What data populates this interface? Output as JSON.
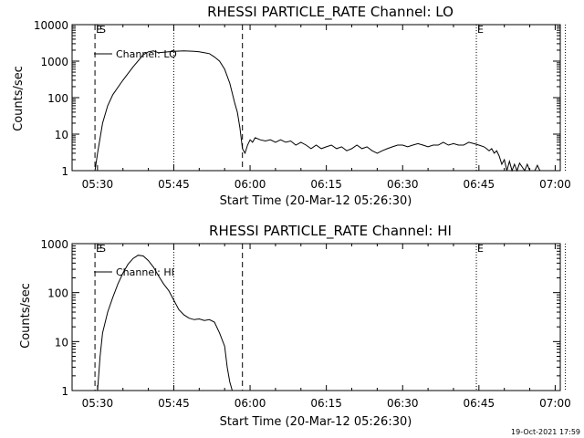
{
  "chart_data": [
    {
      "type": "line",
      "title": "RHESSI PARTICLE_RATE Channel: LO",
      "xlabel": "Start Time (20-Mar-12 05:26:30)",
      "ylabel": "Counts/sec",
      "yscale": "log",
      "ylim": [
        1,
        10000
      ],
      "xlim_minutes": [
        -5,
        91
      ],
      "x_ticks": [
        {
          "t": 0,
          "label": "05:30"
        },
        {
          "t": 15,
          "label": "05:45"
        },
        {
          "t": 30,
          "label": "06:00"
        },
        {
          "t": 45,
          "label": "06:15"
        },
        {
          "t": 60,
          "label": "06:30"
        },
        {
          "t": 75,
          "label": "06:45"
        },
        {
          "t": 90,
          "label": "07:00"
        }
      ],
      "y_ticks": [
        {
          "v": 1,
          "label": "1"
        },
        {
          "v": 10,
          "label": "10"
        },
        {
          "v": 100,
          "label": "100"
        },
        {
          "v": 1000,
          "label": "1000"
        },
        {
          "v": 10000,
          "label": "10000"
        }
      ],
      "legend": "Channel: LO",
      "vlines": [
        {
          "t": -0.5,
          "style": "dashed"
        },
        {
          "t": 15,
          "style": "dotted"
        },
        {
          "t": 28.5,
          "style": "dashed"
        },
        {
          "t": 74.5,
          "style": "dotted"
        },
        {
          "t": 92,
          "style": "dotted"
        }
      ],
      "markers": [
        {
          "t": -0.5,
          "label": "E"
        },
        {
          "t": 0.2,
          "label": "S"
        },
        {
          "t": 74.5,
          "label": "E"
        }
      ],
      "series": [
        {
          "name": "Channel: LO",
          "t": [
            -0.5,
            0,
            1,
            2,
            3,
            5,
            7,
            9,
            10,
            11,
            12,
            13,
            14,
            15,
            17,
            19,
            20,
            21,
            22,
            23,
            24,
            25,
            26,
            27,
            27.5,
            28,
            28.5,
            29,
            29.5,
            30,
            30.5,
            31,
            32,
            33,
            34,
            35,
            36,
            37,
            38,
            39,
            40,
            41,
            42,
            43,
            44,
            45,
            46,
            47,
            48,
            49,
            50,
            51,
            52,
            53,
            54,
            55,
            56,
            57,
            58,
            59,
            60,
            61,
            62,
            63,
            64,
            65,
            66,
            67,
            68,
            69,
            70,
            71,
            72,
            73,
            74,
            75,
            76,
            76.5,
            77,
            77.5,
            78,
            78.5,
            79,
            79.5,
            80,
            80.5,
            81,
            81.5,
            82,
            82.5,
            83,
            84,
            84.5,
            85,
            85.5,
            86,
            86.5,
            87
          ],
          "values": [
            1,
            3,
            20,
            60,
            120,
            300,
            700,
            1500,
            1800,
            1900,
            1700,
            1750,
            1800,
            1850,
            1900,
            1850,
            1800,
            1700,
            1600,
            1300,
            1000,
            600,
            250,
            70,
            40,
            15,
            4,
            3,
            5,
            7,
            6,
            8,
            7,
            6.5,
            7,
            6,
            7,
            6,
            6.5,
            5,
            6,
            5,
            4,
            5,
            4,
            4.5,
            5,
            4,
            4.5,
            3.5,
            4,
            5,
            4,
            4.5,
            3.5,
            3,
            3.5,
            4,
            4.5,
            5,
            5,
            4.5,
            5,
            5.5,
            5,
            4.5,
            5,
            5,
            6,
            5,
            5.5,
            5,
            5,
            6,
            5.5,
            5,
            4.5,
            4,
            3.5,
            4,
            3,
            3.5,
            2.5,
            1.5,
            2,
            1,
            1.8,
            1,
            1.5,
            1,
            1.6,
            1,
            1.5,
            1,
            1,
            1,
            1.4,
            1
          ]
        }
      ]
    },
    {
      "type": "line",
      "title": "RHESSI PARTICLE_RATE Channel: HI",
      "xlabel": "Start Time (20-Mar-12 05:26:30)",
      "ylabel": "Counts/sec",
      "yscale": "log",
      "ylim": [
        1,
        1000
      ],
      "xlim_minutes": [
        -5,
        91
      ],
      "x_ticks": [
        {
          "t": 0,
          "label": "05:30"
        },
        {
          "t": 15,
          "label": "05:45"
        },
        {
          "t": 30,
          "label": "06:00"
        },
        {
          "t": 45,
          "label": "06:15"
        },
        {
          "t": 60,
          "label": "06:30"
        },
        {
          "t": 75,
          "label": "06:45"
        },
        {
          "t": 90,
          "label": "07:00"
        }
      ],
      "y_ticks": [
        {
          "v": 1,
          "label": "1"
        },
        {
          "v": 10,
          "label": "10"
        },
        {
          "v": 100,
          "label": "100"
        },
        {
          "v": 1000,
          "label": "1000"
        }
      ],
      "legend": "Channel: HI",
      "vlines": [
        {
          "t": -0.5,
          "style": "dashed"
        },
        {
          "t": 15,
          "style": "dotted"
        },
        {
          "t": 28.5,
          "style": "dashed"
        },
        {
          "t": 74.5,
          "style": "dotted"
        },
        {
          "t": 92,
          "style": "dotted"
        }
      ],
      "markers": [
        {
          "t": -0.5,
          "label": "E"
        },
        {
          "t": 0.2,
          "label": "S"
        },
        {
          "t": 74.5,
          "label": "E"
        }
      ],
      "series": [
        {
          "name": "Channel: HI",
          "t": [
            0,
            0.5,
            1,
            2,
            3,
            4,
            5,
            6,
            7,
            8,
            9,
            10,
            11,
            12,
            13,
            14,
            15,
            16,
            17,
            18,
            19,
            20,
            21,
            22,
            23,
            24,
            25,
            25.5,
            26,
            26.5
          ],
          "values": [
            1,
            5,
            15,
            40,
            80,
            150,
            250,
            380,
            500,
            580,
            560,
            450,
            330,
            220,
            150,
            110,
            70,
            45,
            35,
            30,
            28,
            29,
            27,
            28,
            25,
            15,
            8,
            3,
            1.5,
            1
          ]
        }
      ]
    }
  ],
  "footer": {
    "timestamp": "19-Oct-2021 17:59"
  }
}
